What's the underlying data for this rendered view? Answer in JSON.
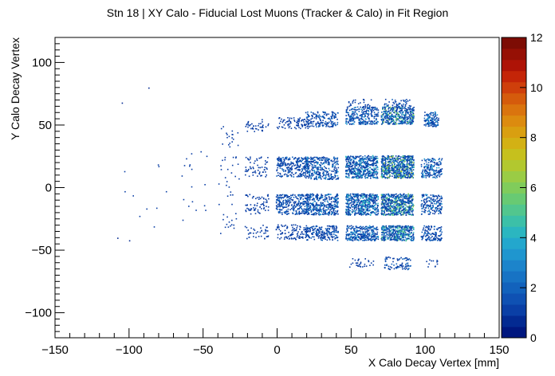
{
  "chart_data": {
    "type": "heatmap",
    "title": "Stn 18 | XY Calo - Fiducial Lost Muons (Tracker & Calo) in Fit Region",
    "xlabel": "X Calo Decay Vertex [mm]",
    "ylabel": "Y Calo Decay Vertex",
    "xlim": [
      -150,
      150
    ],
    "ylim": [
      -120,
      120
    ],
    "x_ticks": [
      -150,
      -100,
      -50,
      0,
      50,
      100,
      150
    ],
    "y_ticks": [
      -100,
      -50,
      0,
      50,
      100
    ],
    "z_range": [
      0,
      12
    ],
    "z_ticks": [
      0,
      2,
      4,
      6,
      8,
      10,
      12
    ],
    "grid": false,
    "colorbar": "right",
    "palette": [
      "#00177f",
      "#032a92",
      "#0a3fa6",
      "#0f51b3",
      "#1262bc",
      "#1773c4",
      "#1c84cb",
      "#1f96cf",
      "#23a7cd",
      "#2bb6c0",
      "#3cc0a8",
      "#52c68e",
      "#68ca73",
      "#80cc5b",
      "#9acc45",
      "#b2c82f",
      "#c6c01d",
      "#d3b114",
      "#d99f10",
      "#dc8b0f",
      "#da740e",
      "#d55b0c",
      "#cf3f0b",
      "#c42508",
      "#ae1306",
      "#961005",
      "#7d0c04"
    ],
    "clusters": [
      {
        "cx": 10,
        "cy": 52,
        "w": 22,
        "h": 9,
        "n": 90,
        "z": 1
      },
      {
        "cx": 10,
        "cy": 17,
        "w": 22,
        "h": 16,
        "n": 260,
        "z": 2
      },
      {
        "cx": 10,
        "cy": -13,
        "w": 22,
        "h": 16,
        "n": 280,
        "z": 2
      },
      {
        "cx": 10,
        "cy": -35,
        "w": 22,
        "h": 12,
        "n": 110,
        "z": 1
      },
      {
        "cx": 30,
        "cy": 55,
        "w": 22,
        "h": 12,
        "n": 160,
        "z": 2
      },
      {
        "cx": 30,
        "cy": 16,
        "w": 22,
        "h": 18,
        "n": 320,
        "z": 3
      },
      {
        "cx": 30,
        "cy": -13,
        "w": 22,
        "h": 17,
        "n": 360,
        "z": 3
      },
      {
        "cx": 30,
        "cy": -36,
        "w": 22,
        "h": 12,
        "n": 200,
        "z": 2
      },
      {
        "cx": 57,
        "cy": 58,
        "w": 22,
        "h": 14,
        "n": 260,
        "z": 3
      },
      {
        "cx": 57,
        "cy": 17,
        "w": 22,
        "h": 18,
        "n": 480,
        "z": 4
      },
      {
        "cx": 57,
        "cy": -13,
        "w": 22,
        "h": 17,
        "n": 480,
        "z": 4
      },
      {
        "cx": 57,
        "cy": -36,
        "w": 22,
        "h": 12,
        "n": 290,
        "z": 3
      },
      {
        "cx": 57,
        "cy": 68,
        "w": 18,
        "h": 6,
        "n": 25,
        "z": 1
      },
      {
        "cx": 57,
        "cy": -60,
        "w": 18,
        "h": 8,
        "n": 30,
        "z": 1
      },
      {
        "cx": 81,
        "cy": 58,
        "w": 22,
        "h": 14,
        "n": 380,
        "z": 6
      },
      {
        "cx": 81,
        "cy": 17,
        "w": 22,
        "h": 18,
        "n": 620,
        "z": 7
      },
      {
        "cx": 81,
        "cy": -13,
        "w": 22,
        "h": 17,
        "n": 560,
        "z": 6
      },
      {
        "cx": 81,
        "cy": -36,
        "w": 22,
        "h": 12,
        "n": 380,
        "z": 5
      },
      {
        "cx": 81,
        "cy": 68,
        "w": 18,
        "h": 6,
        "n": 45,
        "z": 2
      },
      {
        "cx": 81,
        "cy": -60,
        "w": 18,
        "h": 10,
        "n": 80,
        "z": 2
      },
      {
        "cx": 104,
        "cy": 55,
        "w": 10,
        "h": 12,
        "n": 120,
        "z": 3
      },
      {
        "cx": 104,
        "cy": 16,
        "w": 14,
        "h": 16,
        "n": 170,
        "z": 3
      },
      {
        "cx": 104,
        "cy": -13,
        "w": 14,
        "h": 16,
        "n": 160,
        "z": 3
      },
      {
        "cx": 104,
        "cy": -36,
        "w": 14,
        "h": 12,
        "n": 120,
        "z": 2
      },
      {
        "cx": 104,
        "cy": -60,
        "w": 8,
        "h": 6,
        "n": 12,
        "z": 1
      },
      {
        "cx": -14,
        "cy": 50,
        "w": 16,
        "h": 10,
        "n": 40,
        "z": 1
      },
      {
        "cx": -14,
        "cy": 17,
        "w": 16,
        "h": 16,
        "n": 60,
        "z": 1
      },
      {
        "cx": -14,
        "cy": -13,
        "w": 16,
        "h": 16,
        "n": 70,
        "z": 1
      },
      {
        "cx": -14,
        "cy": -35,
        "w": 16,
        "h": 12,
        "n": 40,
        "z": 1
      },
      {
        "cx": -33,
        "cy": 40,
        "w": 14,
        "h": 20,
        "n": 18,
        "z": 1
      },
      {
        "cx": -33,
        "cy": 5,
        "w": 14,
        "h": 40,
        "n": 25,
        "z": 1
      },
      {
        "cx": -33,
        "cy": -30,
        "w": 14,
        "h": 20,
        "n": 15,
        "z": 1
      },
      {
        "cx": -55,
        "cy": 0,
        "w": 20,
        "h": 60,
        "n": 18,
        "z": 1
      },
      {
        "cx": -90,
        "cy": -10,
        "w": 30,
        "h": 60,
        "n": 10,
        "z": 1
      }
    ],
    "single_points": [
      [
        -105,
        68
      ],
      [
        -87,
        80
      ],
      [
        -108,
        -40
      ],
      [
        -100,
        -42
      ]
    ]
  }
}
